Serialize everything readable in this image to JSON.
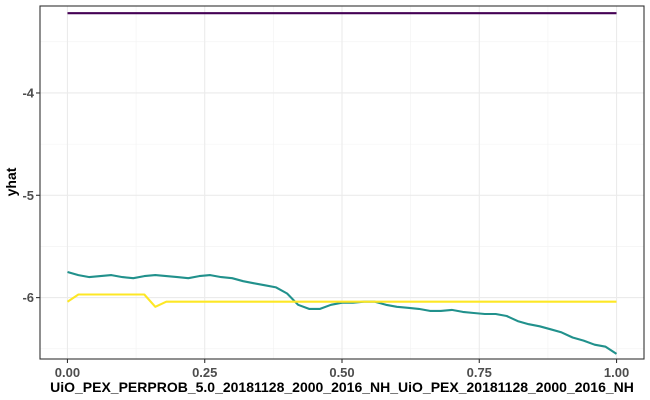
{
  "chart_data": {
    "type": "line",
    "title": "",
    "xlabel": "UiO_PEX_PERPROB_5.0_20181128_2000_2016_NH_UiO_PEX_20181128_2000_2016_NH",
    "ylabel": "yhat",
    "xlim": [
      -0.05,
      1.05
    ],
    "ylim": [
      -6.6,
      -3.15
    ],
    "x_ticks": [
      0.0,
      0.25,
      0.5,
      0.75,
      1.0
    ],
    "x_tick_labels": [
      "0.00",
      "0.25",
      "0.50",
      "0.75",
      "1.00"
    ],
    "y_ticks": [
      -4,
      -5,
      -6
    ],
    "y_tick_labels": [
      "-4",
      "-5",
      "-6"
    ],
    "grid": true,
    "legend": "none",
    "series": [
      {
        "color": "#440154",
        "x": [
          0.0,
          1.0
        ],
        "y": [
          -3.22,
          -3.22
        ]
      },
      {
        "color": "#21918c",
        "x": [
          0.0,
          0.02,
          0.04,
          0.06,
          0.08,
          0.1,
          0.12,
          0.14,
          0.16,
          0.18,
          0.2,
          0.22,
          0.24,
          0.26,
          0.28,
          0.3,
          0.32,
          0.34,
          0.36,
          0.38,
          0.4,
          0.42,
          0.44,
          0.46,
          0.48,
          0.5,
          0.52,
          0.54,
          0.56,
          0.58,
          0.6,
          0.62,
          0.64,
          0.66,
          0.68,
          0.7,
          0.72,
          0.74,
          0.76,
          0.78,
          0.8,
          0.82,
          0.84,
          0.86,
          0.88,
          0.9,
          0.92,
          0.94,
          0.96,
          0.98,
          1.0
        ],
        "y": [
          -5.75,
          -5.78,
          -5.8,
          -5.79,
          -5.78,
          -5.8,
          -5.81,
          -5.79,
          -5.78,
          -5.79,
          -5.8,
          -5.81,
          -5.79,
          -5.78,
          -5.8,
          -5.81,
          -5.84,
          -5.86,
          -5.88,
          -5.9,
          -5.96,
          -6.07,
          -6.11,
          -6.11,
          -6.07,
          -6.05,
          -6.05,
          -6.04,
          -6.04,
          -6.07,
          -6.09,
          -6.1,
          -6.11,
          -6.13,
          -6.13,
          -6.12,
          -6.14,
          -6.15,
          -6.16,
          -6.16,
          -6.18,
          -6.23,
          -6.26,
          -6.28,
          -6.31,
          -6.34,
          -6.39,
          -6.42,
          -6.46,
          -6.48,
          -6.55
        ]
      },
      {
        "color": "#fde725",
        "x": [
          0.0,
          0.02,
          0.04,
          0.06,
          0.08,
          0.1,
          0.12,
          0.14,
          0.16,
          0.18,
          0.2,
          0.3,
          0.4,
          0.5,
          0.6,
          0.7,
          0.8,
          0.9,
          1.0
        ],
        "y": [
          -6.04,
          -5.97,
          -5.97,
          -5.97,
          -5.97,
          -5.97,
          -5.97,
          -5.97,
          -6.09,
          -6.04,
          -6.04,
          -6.04,
          -6.04,
          -6.04,
          -6.04,
          -6.04,
          -6.04,
          -6.04,
          -6.04
        ]
      }
    ]
  }
}
